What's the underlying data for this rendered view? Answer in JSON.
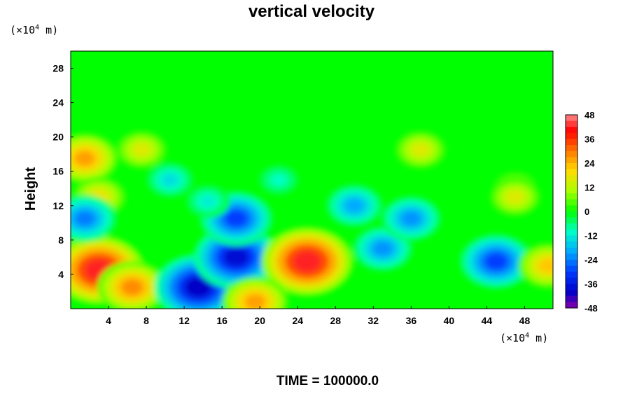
{
  "chart_data": {
    "type": "heatmap",
    "title": "vertical velocity",
    "ylabel": "Height",
    "x_unit_prefix": "(×10",
    "x_unit_exp": "4",
    "x_unit_suffix": " m)",
    "y_unit_prefix": "(×10",
    "y_unit_exp": "4",
    "y_unit_suffix": " m)",
    "xlim": [
      0,
      51
    ],
    "ylim": [
      0,
      30
    ],
    "x_ticks": [
      "4",
      "8",
      "12",
      "16",
      "20",
      "24",
      "28",
      "32",
      "36",
      "40",
      "44",
      "48"
    ],
    "y_ticks": [
      "4",
      "8",
      "12",
      "16",
      "20",
      "24",
      "28"
    ],
    "colorbar": {
      "ticks": [
        "48",
        "36",
        "24",
        "12",
        "0",
        "-12",
        "-24",
        "-36",
        "-48"
      ],
      "range": [
        -48,
        48
      ]
    },
    "features": [
      {
        "x": 3,
        "y": 4.5,
        "value": 42
      },
      {
        "x": 6.5,
        "y": 2.5,
        "value": 28
      },
      {
        "x": 13.5,
        "y": 2.5,
        "value": -40
      },
      {
        "x": 17.5,
        "y": 6,
        "value": -38
      },
      {
        "x": 17.5,
        "y": 10.5,
        "value": -30
      },
      {
        "x": 25,
        "y": 5.5,
        "value": 42
      },
      {
        "x": 33,
        "y": 7,
        "value": -22
      },
      {
        "x": 45,
        "y": 5.5,
        "value": -30
      },
      {
        "x": 50.5,
        "y": 5,
        "value": 22
      },
      {
        "x": 1.5,
        "y": 17.5,
        "value": 26
      },
      {
        "x": 3,
        "y": 13,
        "value": 18
      },
      {
        "x": 7.5,
        "y": 18.5,
        "value": 16
      },
      {
        "x": 37,
        "y": 18.5,
        "value": 16
      },
      {
        "x": 47,
        "y": 14,
        "value": 12
      },
      {
        "x": 47,
        "y": 13,
        "value": 16
      },
      {
        "x": 10.5,
        "y": 15,
        "value": -14
      },
      {
        "x": 14.5,
        "y": 12.5,
        "value": -12
      },
      {
        "x": 22,
        "y": 15,
        "value": -10
      },
      {
        "x": 30,
        "y": 12,
        "value": -20
      },
      {
        "x": 36,
        "y": 10.5,
        "value": -22
      },
      {
        "x": 1.5,
        "y": 10.5,
        "value": -24
      },
      {
        "x": 19.5,
        "y": 0.8,
        "value": 26
      }
    ]
  },
  "footer": {
    "time_label": "TIME = 100000.0"
  }
}
